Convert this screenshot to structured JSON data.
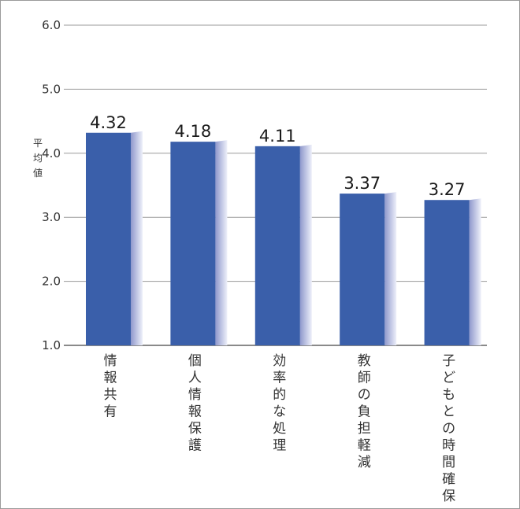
{
  "chart_data": {
    "type": "bar",
    "title": "",
    "xlabel": "",
    "ylabel": "平均値",
    "categories": [
      "情報共有",
      "個人情報保護",
      "効率的な処理",
      "教師の負担軽減",
      "子どもとの時間確保"
    ],
    "values": [
      4.32,
      4.18,
      4.11,
      3.37,
      3.27
    ],
    "data_labels": [
      "4.32",
      "4.18",
      "4.11",
      "3.37",
      "3.27"
    ],
    "ylim": [
      1.0,
      6.0
    ],
    "yticks": [
      "1.0",
      "2.0",
      "3.0",
      "4.0",
      "5.0",
      "6.0"
    ],
    "grid": true,
    "legend": "none",
    "colors": {
      "bar_front": "#3a5faa",
      "bar_side_dark": "#8f98cc",
      "bar_side_light": "#eef0fa",
      "grid": "#9a9a9a",
      "axis": "#444444"
    }
  }
}
